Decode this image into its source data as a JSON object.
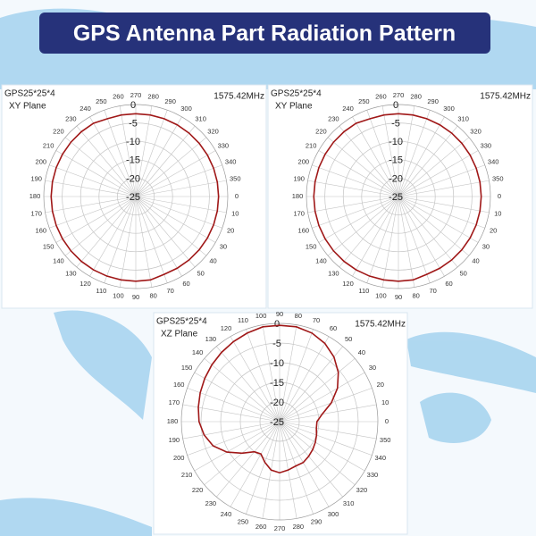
{
  "page_title": "GPS Antenna Part Radiation Pattern",
  "chart_data": [
    {
      "type": "polar",
      "title": "GPS25*25*4",
      "subtitle": "XY Plane",
      "annotation": "1575.42MHz",
      "direction": "clockwise",
      "color": "#a01818",
      "grid": true,
      "ylim": [
        -25,
        0
      ],
      "yticks": [
        0,
        -5,
        -10,
        -15,
        -20,
        -25
      ],
      "thetaticks": [
        0,
        10,
        20,
        30,
        40,
        50,
        60,
        70,
        80,
        90,
        100,
        110,
        120,
        130,
        140,
        150,
        160,
        170,
        180,
        190,
        200,
        210,
        220,
        230,
        240,
        250,
        260,
        270,
        280,
        290,
        300,
        310,
        320,
        330,
        340,
        350
      ],
      "theta": [
        0,
        10,
        20,
        30,
        40,
        50,
        60,
        70,
        80,
        90,
        100,
        110,
        120,
        130,
        140,
        150,
        160,
        170,
        180,
        190,
        200,
        210,
        220,
        230,
        240,
        250,
        260,
        270,
        280,
        290,
        300,
        310,
        320,
        330,
        340,
        350
      ],
      "values": [
        -2.5,
        -2.5,
        -2.5,
        -2.5,
        -2.5,
        -2.5,
        -2.5,
        -2.5,
        -2,
        -2,
        -2,
        -2,
        -2,
        -2,
        -2,
        -2,
        -2,
        -2,
        -2,
        -2,
        -2,
        -2,
        -2,
        -2,
        -2,
        -2.5,
        -2.5,
        -2.5,
        -2.5,
        -2.5,
        -2.5,
        -2.5,
        -2.5,
        -2.5,
        -2.5,
        -2.5
      ]
    },
    {
      "type": "polar",
      "title": "GPS25*25*4",
      "subtitle": "XY Plane",
      "annotation": "1575.42MHz",
      "direction": "clockwise",
      "color": "#a01818",
      "grid": true,
      "ylim": [
        -25,
        0
      ],
      "yticks": [
        0,
        -5,
        -10,
        -15,
        -20,
        -25
      ],
      "thetaticks": [
        0,
        10,
        20,
        30,
        40,
        50,
        60,
        70,
        80,
        90,
        100,
        110,
        120,
        130,
        140,
        150,
        160,
        170,
        180,
        190,
        200,
        210,
        220,
        230,
        240,
        250,
        260,
        270,
        280,
        290,
        300,
        310,
        320,
        330,
        340,
        350
      ],
      "theta": [
        0,
        10,
        20,
        30,
        40,
        50,
        60,
        70,
        80,
        90,
        100,
        110,
        120,
        130,
        140,
        150,
        160,
        170,
        180,
        190,
        200,
        210,
        220,
        230,
        240,
        250,
        260,
        270,
        280,
        290,
        300,
        310,
        320,
        330,
        340,
        350
      ],
      "values": [
        -2.5,
        -2.5,
        -2.5,
        -2.5,
        -2.5,
        -2.5,
        -2.5,
        -2.5,
        -2,
        -2,
        -2,
        -2,
        -2,
        -2,
        -2,
        -2,
        -2,
        -2,
        -2,
        -2,
        -2,
        -2,
        -2,
        -2,
        -2,
        -2.5,
        -2.5,
        -2.5,
        -2.5,
        -2.5,
        -2.5,
        -2.5,
        -2.5,
        -2.5,
        -2.5,
        -2.5
      ]
    },
    {
      "type": "polar",
      "title": "GPS25*25*4",
      "subtitle": "XZ Plane",
      "annotation": "1575.42MHz",
      "direction": "counterclockwise",
      "color": "#a01818",
      "grid": true,
      "ylim": [
        -25,
        0
      ],
      "yticks": [
        0,
        -5,
        -10,
        -15,
        -20,
        -25
      ],
      "thetaticks": [
        0,
        10,
        20,
        30,
        40,
        50,
        60,
        70,
        80,
        90,
        100,
        110,
        120,
        130,
        140,
        150,
        160,
        170,
        180,
        190,
        200,
        210,
        220,
        230,
        240,
        250,
        260,
        270,
        280,
        290,
        300,
        310,
        320,
        330,
        340,
        350
      ],
      "theta": [
        0,
        10,
        20,
        30,
        40,
        50,
        60,
        70,
        80,
        90,
        100,
        110,
        120,
        130,
        140,
        150,
        160,
        170,
        180,
        190,
        200,
        210,
        220,
        230,
        240,
        250,
        260,
        270,
        280,
        290,
        300,
        310,
        320,
        330,
        340,
        350
      ],
      "values": [
        -15.5,
        -14,
        -11,
        -8,
        -5.5,
        -3.5,
        -2,
        -1,
        -0.5,
        -0.5,
        -0.5,
        -1,
        -1.5,
        -2,
        -2.5,
        -3,
        -3.5,
        -4,
        -4.5,
        -5.5,
        -7,
        -9.5,
        -12.5,
        -15,
        -15.5,
        -14,
        -12.5,
        -12,
        -12.5,
        -13,
        -13,
        -13.5,
        -14,
        -14.5,
        -15,
        -15.5
      ]
    }
  ]
}
